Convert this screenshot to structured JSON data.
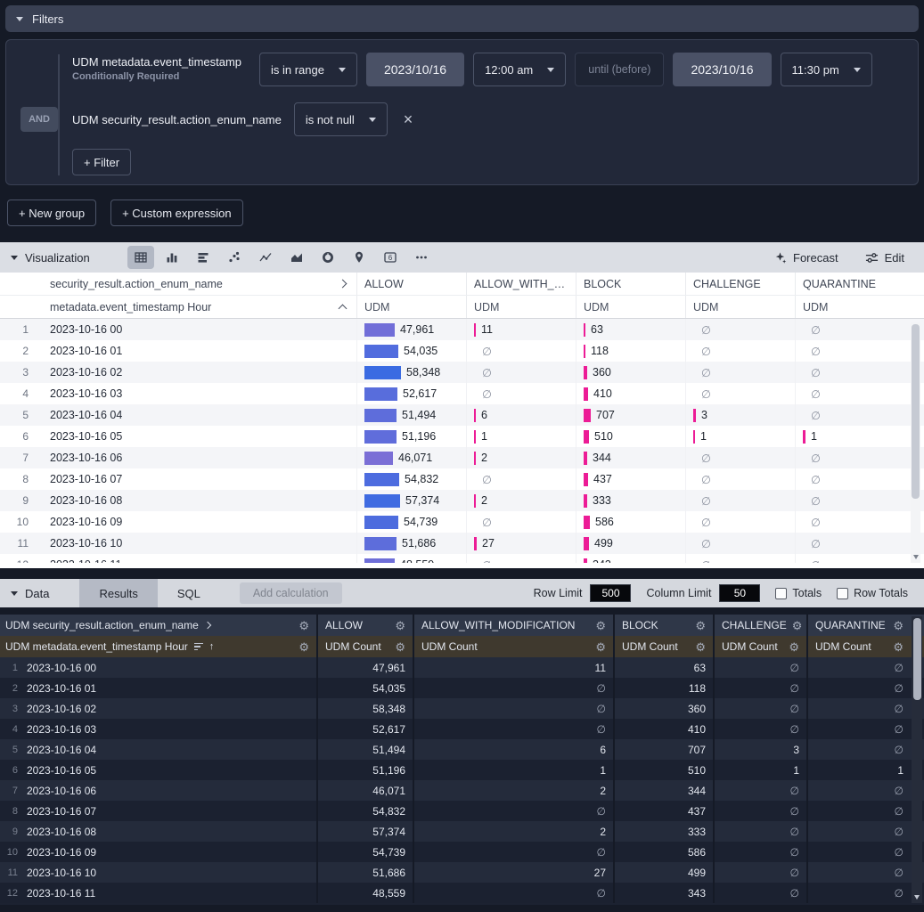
{
  "filters": {
    "header_label": "Filters",
    "timestamp_filter": {
      "field": "UDM metadata.event_timestamp",
      "note": "Conditionally Required",
      "operator": "is in range",
      "start_date": "2023/10/16",
      "start_time": "12:00 am",
      "until_label": "until (before)",
      "end_date": "2023/10/16",
      "end_time": "11:30 pm"
    },
    "action_filter": {
      "conjunction": "AND",
      "field": "UDM security_result.action_enum_name",
      "operator": "is not null"
    },
    "add_filter_label": "+ Filter"
  },
  "actions": {
    "new_group_label": "+ New group",
    "custom_expression_label": "+ Custom expression"
  },
  "visualization": {
    "header_label": "Visualization",
    "selected_icon": "table",
    "icons": [
      "table",
      "column-chart",
      "bar-chart",
      "scatter-chart",
      "line-chart",
      "area-chart",
      "donut-chart",
      "map",
      "single-value",
      "more"
    ],
    "forecast_label": "Forecast",
    "edit_label": "Edit"
  },
  "viz_table": {
    "pivot_field": "security_result.action_enum_name",
    "row_field": "metadata.event_timestamp Hour",
    "measure_label": "UDM"
  },
  "data_bar": {
    "header_label": "Data",
    "tabs": [
      {
        "label": "Results",
        "selected": true
      },
      {
        "label": "SQL",
        "selected": false
      }
    ],
    "add_calculation_label": "Add calculation",
    "row_limit_label": "Row Limit",
    "row_limit_value": "500",
    "column_limit_label": "Column Limit",
    "column_limit_value": "50",
    "totals_label": "Totals",
    "row_totals_label": "Row Totals"
  },
  "data_table": {
    "pivot_field": "UDM security_result.action_enum_name",
    "row_field": "UDM metadata.event_timestamp Hour",
    "measure_label": "UDM Count"
  },
  "chart_data": {
    "type": "table",
    "title": "UDM Count by metadata.event_timestamp Hour, pivoted by security_result.action_enum_name",
    "sort": "metadata.event_timestamp Hour ascending",
    "null_symbol": "∅",
    "x": [
      "2023-10-16 00",
      "2023-10-16 01",
      "2023-10-16 02",
      "2023-10-16 03",
      "2023-10-16 04",
      "2023-10-16 05",
      "2023-10-16 06",
      "2023-10-16 07",
      "2023-10-16 08",
      "2023-10-16 09",
      "2023-10-16 10",
      "2023-10-16 11"
    ],
    "series": [
      {
        "name": "ALLOW",
        "values": [
          47961,
          54035,
          58348,
          52617,
          51494,
          51196,
          46071,
          54832,
          57374,
          54739,
          51686,
          48559
        ]
      },
      {
        "name": "ALLOW_WITH_MODIFICATION",
        "values": [
          11,
          null,
          null,
          null,
          6,
          1,
          2,
          null,
          2,
          null,
          27,
          null
        ]
      },
      {
        "name": "BLOCK",
        "values": [
          63,
          118,
          360,
          410,
          707,
          510,
          344,
          437,
          333,
          586,
          499,
          343
        ]
      },
      {
        "name": "CHALLENGE",
        "values": [
          null,
          null,
          null,
          null,
          3,
          1,
          null,
          null,
          null,
          null,
          null,
          null
        ]
      },
      {
        "name": "QUARANTINE",
        "values": [
          null,
          null,
          null,
          null,
          null,
          1,
          null,
          null,
          null,
          null,
          null,
          null
        ]
      }
    ],
    "colors": {
      "bar_pink": "#ec1c96",
      "allow_bar_low": "#7b6fd6",
      "allow_bar_high": "#3a6be2"
    }
  }
}
